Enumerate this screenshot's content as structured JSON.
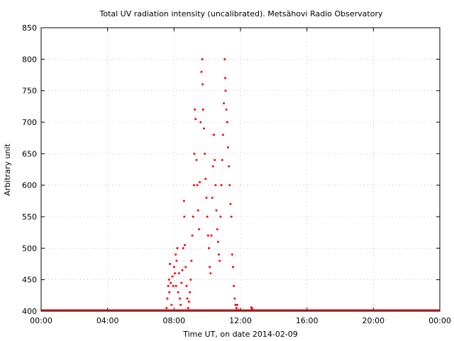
{
  "chart_data": {
    "type": "scatter",
    "title": "Total UV radiation intensity (uncalibrated). Metsähovi Radio Observatory",
    "xlabel": "Time UT, on date 2014-02-09",
    "ylabel": "Arbitrary unit",
    "x_unit": "hours UT",
    "xlim": [
      0,
      24
    ],
    "ylim": [
      400,
      850
    ],
    "x_ticks": [
      0,
      4,
      8,
      12,
      16,
      20,
      24
    ],
    "x_tick_labels": [
      "00:00",
      "04:00",
      "08:00",
      "12:00",
      "16:00",
      "20:00",
      "00:00"
    ],
    "y_ticks": [
      400,
      450,
      500,
      550,
      600,
      650,
      700,
      750,
      800,
      850
    ],
    "y_tick_labels": [
      "400",
      "450",
      "500",
      "550",
      "600",
      "650",
      "700",
      "750",
      "800",
      "850"
    ],
    "grid": true,
    "marker_color": "#ff0000",
    "baseline": {
      "value": 400,
      "x_start": 0,
      "x_end": 24
    },
    "points": [
      [
        7.55,
        405
      ],
      [
        7.6,
        420
      ],
      [
        7.65,
        440
      ],
      [
        7.7,
        450
      ],
      [
        7.72,
        430
      ],
      [
        7.75,
        475
      ],
      [
        7.8,
        445
      ],
      [
        7.85,
        410
      ],
      [
        7.9,
        455
      ],
      [
        7.95,
        440
      ],
      [
        8.0,
        470
      ],
      [
        8.05,
        460
      ],
      [
        8.1,
        490
      ],
      [
        8.12,
        440
      ],
      [
        8.15,
        480
      ],
      [
        8.2,
        500
      ],
      [
        8.25,
        430
      ],
      [
        8.3,
        460
      ],
      [
        8.35,
        420
      ],
      [
        8.4,
        410
      ],
      [
        8.45,
        445
      ],
      [
        8.5,
        465
      ],
      [
        8.55,
        500
      ],
      [
        8.6,
        575
      ],
      [
        8.62,
        550
      ],
      [
        8.65,
        505
      ],
      [
        8.7,
        470
      ],
      [
        8.75,
        440
      ],
      [
        8.8,
        420
      ],
      [
        8.85,
        405
      ],
      [
        8.9,
        415
      ],
      [
        8.95,
        430
      ],
      [
        9.0,
        450
      ],
      [
        9.05,
        480
      ],
      [
        9.1,
        520
      ],
      [
        9.15,
        550
      ],
      [
        9.2,
        600
      ],
      [
        9.22,
        650
      ],
      [
        9.25,
        720
      ],
      [
        9.3,
        705
      ],
      [
        9.35,
        640
      ],
      [
        9.4,
        600
      ],
      [
        9.45,
        560
      ],
      [
        9.5,
        530
      ],
      [
        9.55,
        605
      ],
      [
        9.6,
        700
      ],
      [
        9.65,
        780
      ],
      [
        9.7,
        800
      ],
      [
        9.72,
        760
      ],
      [
        9.75,
        720
      ],
      [
        9.8,
        690
      ],
      [
        9.85,
        650
      ],
      [
        9.9,
        610
      ],
      [
        9.95,
        580
      ],
      [
        10.0,
        550
      ],
      [
        10.05,
        520
      ],
      [
        10.1,
        500
      ],
      [
        10.15,
        470
      ],
      [
        10.2,
        460
      ],
      [
        10.25,
        520
      ],
      [
        10.3,
        580
      ],
      [
        10.35,
        630
      ],
      [
        10.4,
        680
      ],
      [
        10.45,
        640
      ],
      [
        10.5,
        600
      ],
      [
        10.55,
        560
      ],
      [
        10.6,
        530
      ],
      [
        10.65,
        510
      ],
      [
        10.7,
        490
      ],
      [
        10.75,
        480
      ],
      [
        10.8,
        550
      ],
      [
        10.85,
        600
      ],
      [
        10.9,
        640
      ],
      [
        10.95,
        680
      ],
      [
        11.0,
        730
      ],
      [
        11.05,
        800
      ],
      [
        11.08,
        770
      ],
      [
        11.1,
        750
      ],
      [
        11.15,
        720
      ],
      [
        11.2,
        700
      ],
      [
        11.25,
        660
      ],
      [
        11.3,
        630
      ],
      [
        11.35,
        600
      ],
      [
        11.4,
        570
      ],
      [
        11.45,
        550
      ],
      [
        11.5,
        490
      ],
      [
        11.55,
        470
      ],
      [
        11.6,
        440
      ],
      [
        11.65,
        420
      ],
      [
        11.7,
        410
      ],
      [
        11.75,
        405
      ],
      [
        11.8,
        410
      ],
      [
        11.85,
        402
      ],
      [
        12.6,
        401
      ],
      [
        12.65,
        406
      ],
      [
        12.7,
        404
      ]
    ]
  }
}
